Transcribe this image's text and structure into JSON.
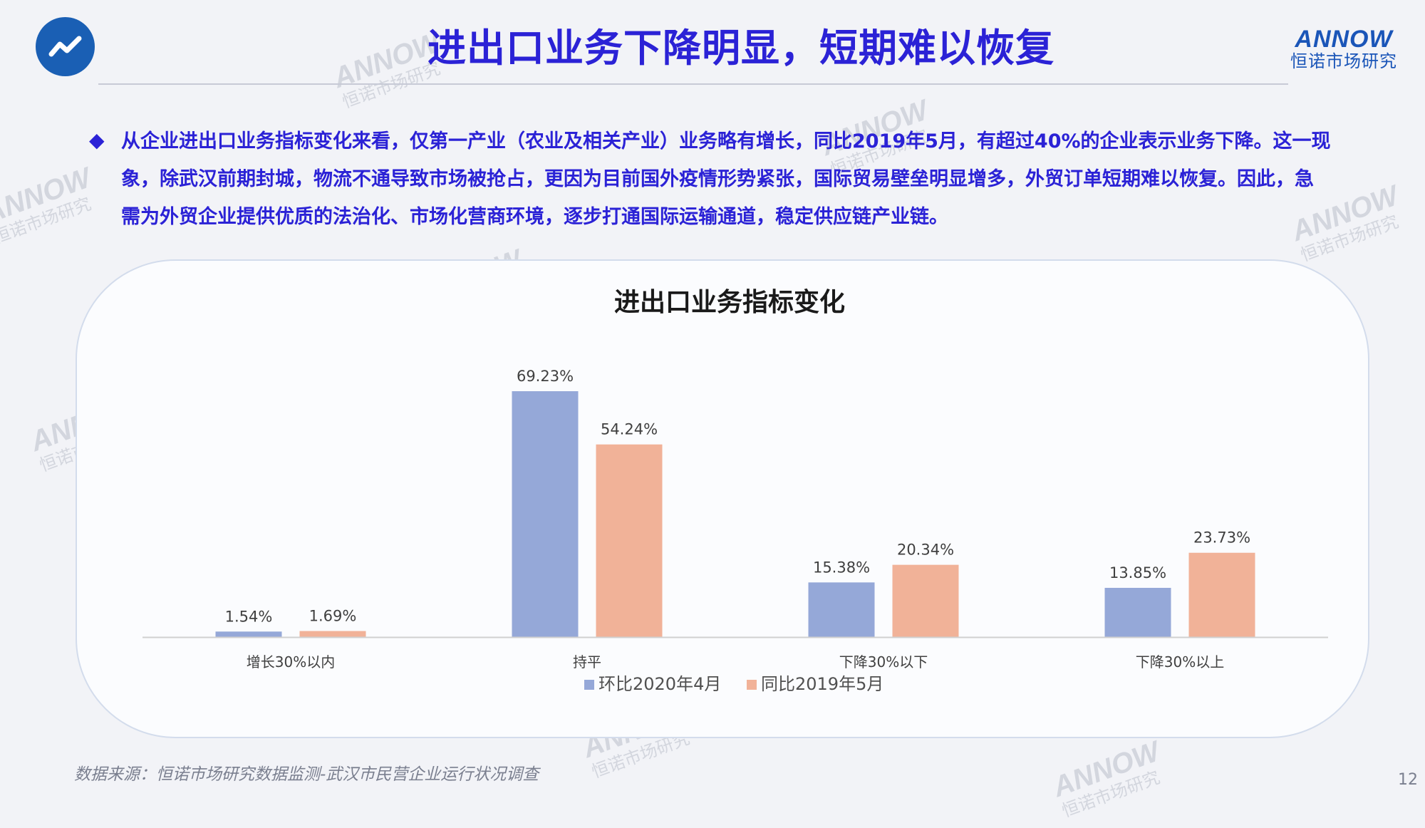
{
  "header": {
    "title": "进出口业务下降明显，短期难以恢复",
    "logo_icon": "trend-line-icon",
    "brand": {
      "name": "ANNOW",
      "subtitle": "恒诺市场研究",
      "color": "#1a55b8"
    }
  },
  "summary": {
    "text": "从企业进出口业务指标变化来看，仅第一产业（农业及相关产业）业务略有增长，同比2019年5月，有超过40%的企业表示业务下降。这一现象，除武汉前期封城，物流不通导致市场被抢占，更因为目前国外疫情形势紧张，国际贸易壁垒明显增多，外贸订单短期难以恢复。因此，急需为外贸企业提供优质的法治化、市场化营商环境，逐步打通国际运输通道，稳定供应链产业链。",
    "color": "#2b22d6"
  },
  "chart_data": {
    "type": "bar",
    "title": "进出口业务指标变化",
    "categories": [
      "增长30%以内",
      "持平",
      "下降30%以下",
      "下降30%以上"
    ],
    "series": [
      {
        "name": "环比2020年4月",
        "values": [
          1.54,
          69.23,
          15.38,
          13.85
        ],
        "labels": [
          "1.54%",
          "69.23%",
          "15.38%",
          "13.85%"
        ],
        "color": "#95a8d8"
      },
      {
        "name": "同比2019年5月",
        "values": [
          1.69,
          54.24,
          20.34,
          23.73
        ],
        "labels": [
          "1.69%",
          "54.24%",
          "20.34%",
          "23.73%"
        ],
        "color": "#f1b298"
      }
    ],
    "ylim": [
      0,
      70
    ],
    "grid": false,
    "legend_position": "bottom"
  },
  "footer": {
    "source": "数据来源：恒诺市场研究数据监测-武汉市民营企业运行状况调查",
    "page_number": "12"
  },
  "watermark": {
    "word": "ANNOW",
    "subtitle": "恒诺市场研究"
  }
}
